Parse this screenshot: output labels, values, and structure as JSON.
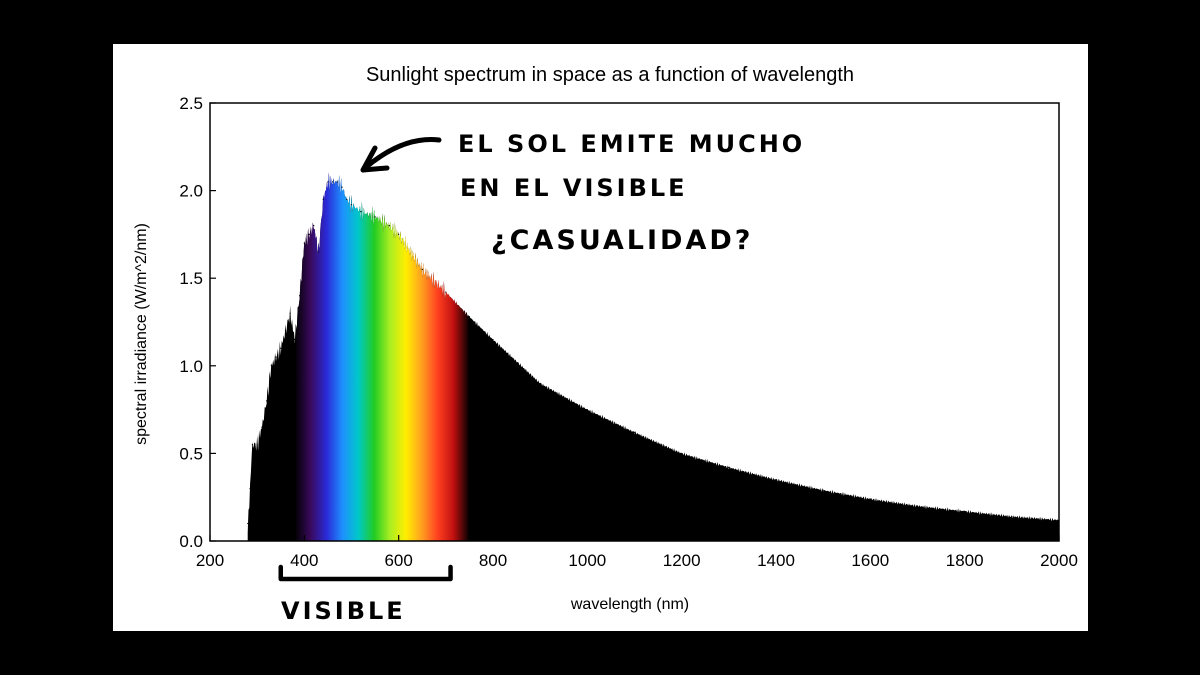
{
  "chart_data": {
    "type": "area",
    "title": "Sunlight spectrum in space as a function of wavelength",
    "xlabel": "wavelength (nm)",
    "ylabel": "spectral irradiance (W/m^2/nm)",
    "xlim": [
      200,
      2000
    ],
    "ylim": [
      0,
      2.5
    ],
    "x_ticks": [
      200,
      400,
      600,
      800,
      1000,
      1200,
      1400,
      1600,
      1800,
      2000
    ],
    "y_ticks": [
      "0.0",
      "0.5",
      "1.0",
      "1.5",
      "2.0",
      "2.5"
    ],
    "grid": false,
    "series": [
      {
        "x": [
          280,
          285,
          290,
          300,
          310,
          320,
          330,
          340,
          350,
          360,
          370,
          380,
          390,
          400,
          410,
          420,
          430,
          440,
          450,
          460,
          470,
          480,
          490,
          500,
          520,
          550,
          580,
          600,
          650,
          700,
          750,
          800,
          900,
          1000,
          1100,
          1200,
          1300,
          1400,
          1500,
          1600,
          1700,
          1800,
          1900,
          2000
        ],
        "values": [
          0.1,
          0.3,
          0.55,
          0.55,
          0.65,
          0.8,
          1.0,
          1.05,
          1.1,
          1.2,
          1.3,
          1.15,
          1.4,
          1.7,
          1.75,
          1.8,
          1.65,
          1.95,
          2.05,
          2.05,
          2.05,
          2.02,
          1.95,
          1.92,
          1.88,
          1.85,
          1.8,
          1.75,
          1.55,
          1.42,
          1.28,
          1.15,
          0.9,
          0.75,
          0.62,
          0.5,
          0.42,
          0.35,
          0.29,
          0.24,
          0.2,
          0.17,
          0.14,
          0.12
        ]
      }
    ],
    "fill_color": "#000000",
    "visible_band": [
      380,
      750
    ],
    "spectrum_colors": [
      "#000000",
      "#3a0a5e",
      "#2a2ad8",
      "#1e90ff",
      "#00c8c8",
      "#22cc22",
      "#aaee22",
      "#ffee00",
      "#ffa020",
      "#ff4020",
      "#c01010",
      "#000000"
    ]
  },
  "annotations": {
    "note_line1": "EL SOL EMITE MUCHO",
    "note_line2": "EN EL VISIBLE",
    "note_line3": "¿CASUALIDAD?",
    "bracket_label": "VISIBLE",
    "bracket_range": [
      350,
      710
    ]
  }
}
